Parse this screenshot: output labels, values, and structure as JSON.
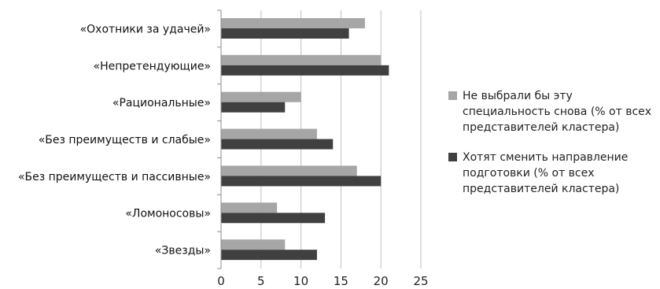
{
  "chart_data": {
    "type": "bar",
    "orientation": "horizontal",
    "categories": [
      "«Охотники за удачей»",
      "«Непретендующие»",
      "«Рациональные»",
      "«Без преимуществ и слабые»",
      "«Без преимуществ и пассивные»",
      "«Ломоносовы»",
      "«Звезды»"
    ],
    "series": [
      {
        "name": "Не выбрали бы эту специальность снова (% от всех представителей кластера)",
        "legend_lines": [
          "Не выбрали бы эту",
          "специальность снова (% от всех",
          "представителей кластера)"
        ],
        "color": "#a6a6a6",
        "values": [
          18,
          20,
          10,
          12,
          17,
          7,
          8
        ]
      },
      {
        "name": "Хотят сменить направление подготовки (% от всех представителей кластера)",
        "legend_lines": [
          "Хотят сменить направление",
          "подготовки (% от всех",
          "представителей кластера)"
        ],
        "color": "#404040",
        "values": [
          16,
          21,
          8,
          14,
          20,
          13,
          12
        ]
      }
    ],
    "xlim": [
      0,
      25
    ],
    "xticks": [
      "0",
      "5",
      "10",
      "15",
      "20",
      "25"
    ],
    "grid": true,
    "legend_position": "right"
  }
}
